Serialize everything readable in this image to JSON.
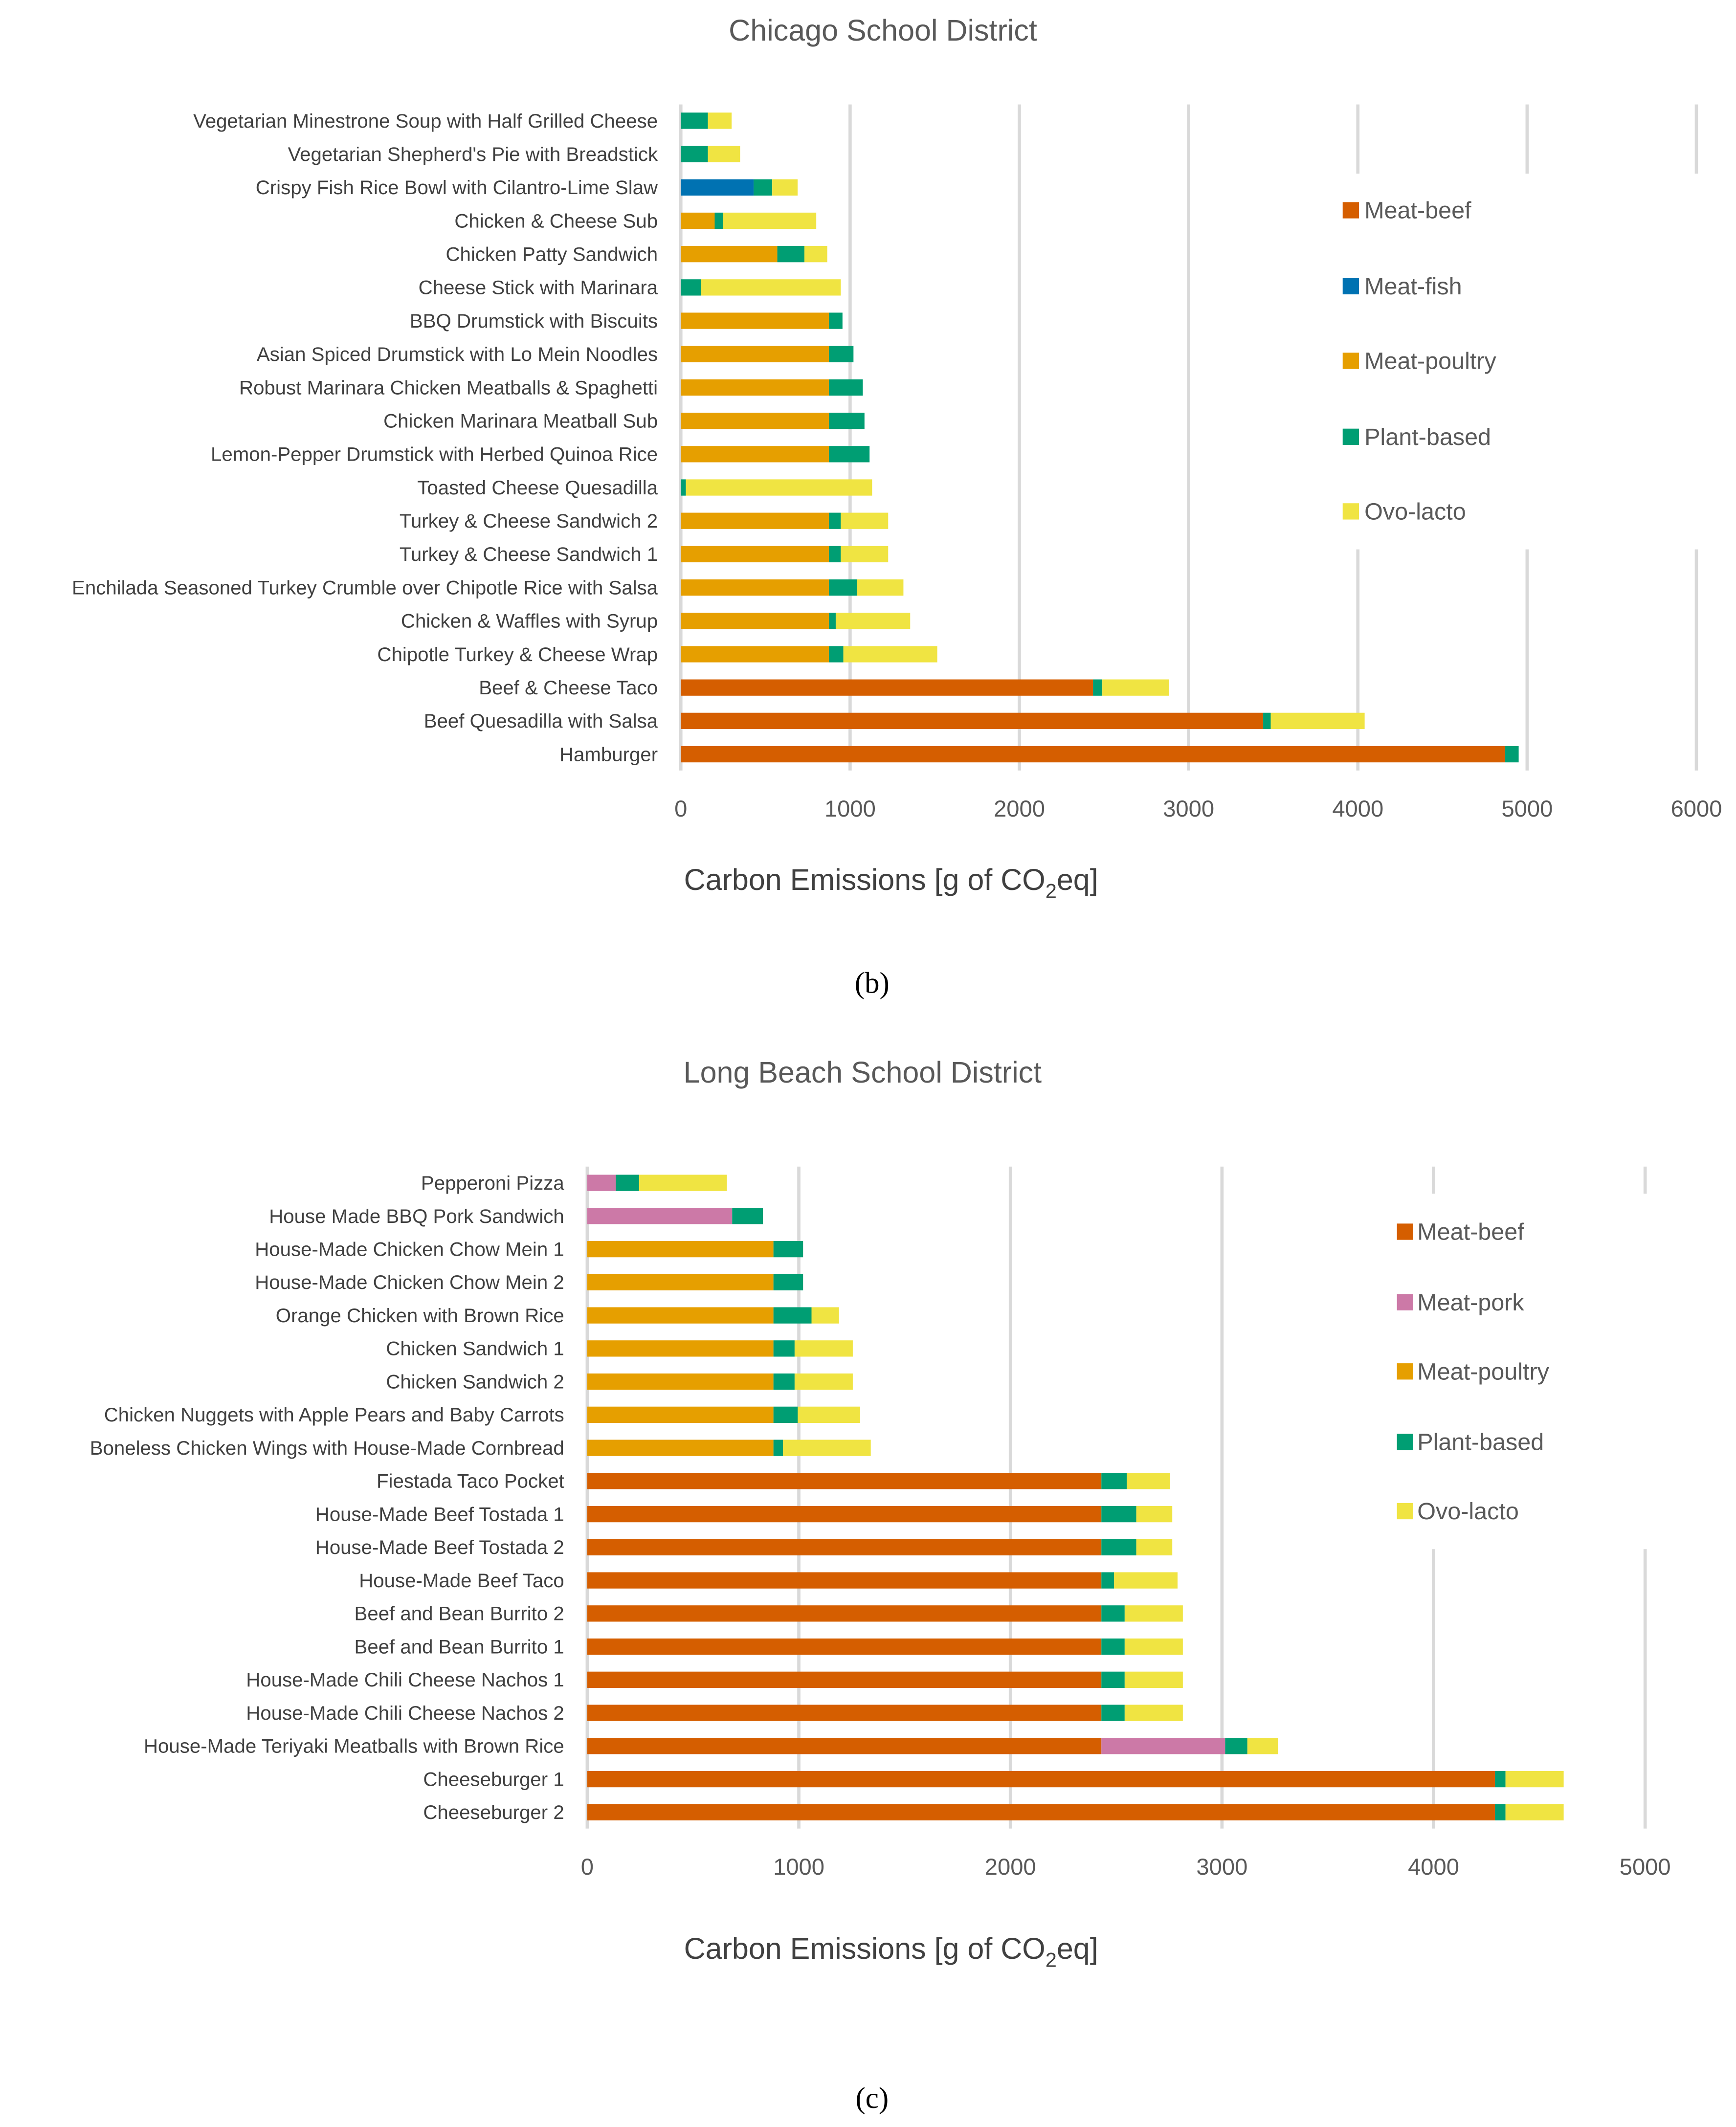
{
  "chart_data": [
    {
      "type": "bar",
      "orientation": "horizontal",
      "stacked": true,
      "title": "Chicago School District",
      "panel_label": "(b)",
      "xlabel_prefix": "Carbon Emissions [g of CO",
      "xlabel_sub": "2",
      "xlabel_suffix": "eq]",
      "xlim": [
        0,
        6000
      ],
      "xticks": [
        0,
        1000,
        2000,
        3000,
        4000,
        5000,
        6000
      ],
      "grid": true,
      "legend_position": "right",
      "series": [
        {
          "name": "Meat-beef",
          "color": "#D55E00"
        },
        {
          "name": "Meat-fish",
          "color": "#0072B2"
        },
        {
          "name": "Meat-poultry",
          "color": "#E69F00"
        },
        {
          "name": "Plant-based",
          "color": "#009E73"
        },
        {
          "name": "Ovo-lacto",
          "color": "#F0E442"
        }
      ],
      "categories": [
        "Vegetarian Minestrone Soup with Half Grilled Cheese",
        "Vegetarian Shepherd's Pie with Breadstick",
        "Crispy Fish Rice Bowl with Cilantro-Lime Slaw",
        "Chicken & Cheese Sub",
        "Chicken Patty Sandwich",
        "Cheese Stick with Marinara",
        "BBQ Drumstick with Biscuits",
        "Asian Spiced Drumstick with Lo Mein Noodles",
        "Robust Marinara Chicken Meatballs & Spaghetti",
        "Chicken Marinara Meatball Sub",
        "Lemon-Pepper Drumstick with Herbed Quinoa Rice",
        "Toasted Cheese Quesadilla",
        "Turkey & Cheese Sandwich 2",
        "Turkey & Cheese Sandwich 1",
        "Enchilada Seasoned Turkey Crumble over Chipotle Rice with Salsa",
        "Chicken & Waffles with Syrup",
        "Chipotle Turkey & Cheese Wrap",
        "Beef & Cheese Taco",
        "Beef Quesadilla with Salsa",
        "Hamburger"
      ],
      "values": [
        [
          0,
          0,
          0,
          160,
          140
        ],
        [
          0,
          0,
          0,
          160,
          190
        ],
        [
          0,
          430,
          0,
          110,
          150
        ],
        [
          0,
          0,
          200,
          50,
          550
        ],
        [
          0,
          0,
          570,
          160,
          135
        ],
        [
          0,
          0,
          0,
          120,
          825
        ],
        [
          0,
          0,
          875,
          80,
          0
        ],
        [
          0,
          0,
          875,
          145,
          0
        ],
        [
          0,
          0,
          875,
          200,
          0
        ],
        [
          0,
          0,
          875,
          210,
          0
        ],
        [
          0,
          0,
          875,
          240,
          0
        ],
        [
          0,
          0,
          0,
          30,
          1100
        ],
        [
          0,
          0,
          875,
          70,
          280
        ],
        [
          0,
          0,
          875,
          70,
          280
        ],
        [
          0,
          0,
          875,
          165,
          275
        ],
        [
          0,
          0,
          875,
          40,
          440
        ],
        [
          0,
          0,
          875,
          85,
          555
        ],
        [
          2435,
          0,
          0,
          55,
          395
        ],
        [
          3440,
          0,
          0,
          45,
          555
        ],
        [
          4870,
          0,
          0,
          80,
          0
        ]
      ]
    },
    {
      "type": "bar",
      "orientation": "horizontal",
      "stacked": true,
      "title": "Long Beach School District",
      "panel_label": "(c)",
      "xlabel_prefix": "Carbon Emissions [g of CO",
      "xlabel_sub": "2",
      "xlabel_suffix": "eq]",
      "xlim": [
        0,
        5000
      ],
      "xticks": [
        0,
        1000,
        2000,
        3000,
        4000,
        5000
      ],
      "grid": true,
      "legend_position": "right",
      "series": [
        {
          "name": "Meat-beef",
          "color": "#D55E00"
        },
        {
          "name": "Meat-pork",
          "color": "#CC79A7"
        },
        {
          "name": "Meat-poultry",
          "color": "#E69F00"
        },
        {
          "name": "Plant-based",
          "color": "#009E73"
        },
        {
          "name": "Ovo-lacto",
          "color": "#F0E442"
        }
      ],
      "categories": [
        "Pepperoni Pizza",
        "House Made BBQ Pork Sandwich",
        "House-Made Chicken Chow Mein 1",
        "House-Made Chicken Chow Mein 2",
        "Orange Chicken with Brown Rice",
        "Chicken Sandwich 1",
        "Chicken Sandwich 2",
        "Chicken Nuggets with Apple Pears and Baby Carrots",
        "Boneless Chicken Wings with House-Made Cornbread",
        "Fiestada Taco Pocket",
        "House-Made Beef Tostada 1",
        "House-Made Beef Tostada 2",
        "House-Made Beef Taco",
        "Beef and Bean Burrito 2",
        "Beef and Bean Burrito 1",
        "House-Made Chili Cheese Nachos 1",
        "House-Made Chili Cheese Nachos 2",
        "House-Made Teriyaki Meatballs with Brown Rice",
        "Cheeseburger 1",
        "Cheeseburger 2"
      ],
      "values": [
        [
          0,
          135,
          0,
          110,
          415
        ],
        [
          0,
          685,
          0,
          145,
          0
        ],
        [
          0,
          0,
          880,
          140,
          0
        ],
        [
          0,
          0,
          880,
          140,
          0
        ],
        [
          0,
          0,
          880,
          180,
          130
        ],
        [
          0,
          0,
          880,
          100,
          275
        ],
        [
          0,
          0,
          880,
          100,
          275
        ],
        [
          0,
          0,
          880,
          115,
          295
        ],
        [
          0,
          0,
          880,
          45,
          415
        ],
        [
          2430,
          0,
          0,
          120,
          205
        ],
        [
          2430,
          0,
          0,
          165,
          170
        ],
        [
          2430,
          0,
          0,
          165,
          170
        ],
        [
          2430,
          0,
          0,
          60,
          300
        ],
        [
          2430,
          0,
          0,
          110,
          275
        ],
        [
          2430,
          0,
          0,
          110,
          275
        ],
        [
          2430,
          0,
          0,
          110,
          275
        ],
        [
          2430,
          0,
          0,
          110,
          275
        ],
        [
          2430,
          585,
          0,
          105,
          145
        ],
        [
          4290,
          0,
          0,
          50,
          275
        ],
        [
          4290,
          0,
          0,
          50,
          275
        ]
      ]
    }
  ]
}
